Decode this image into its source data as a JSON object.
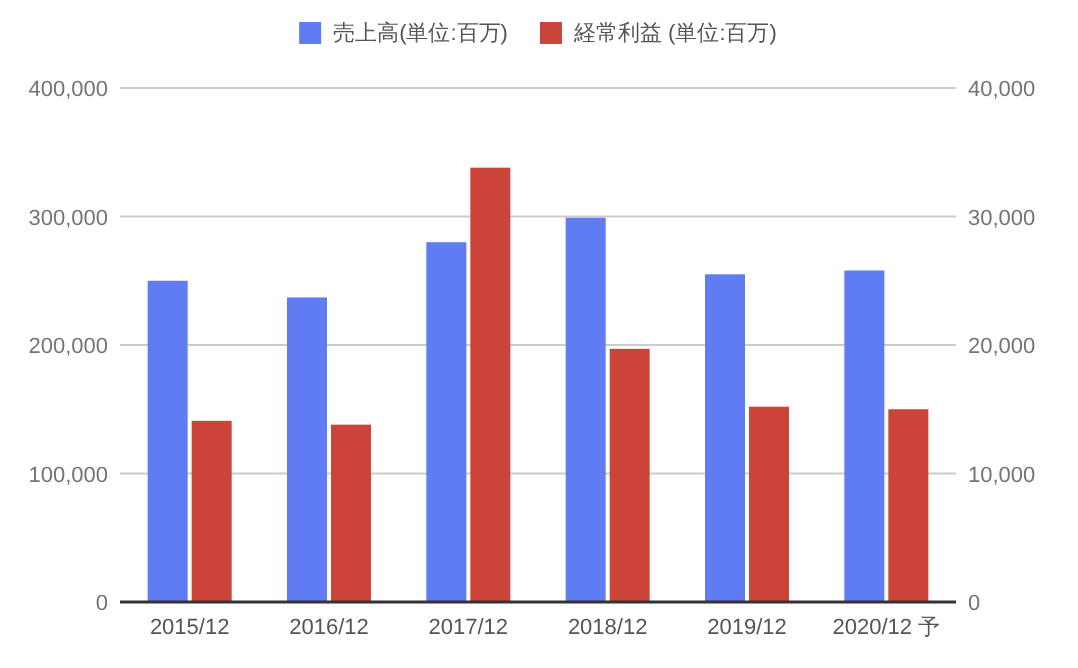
{
  "chart_data": {
    "type": "bar",
    "categories": [
      "2015/12",
      "2016/12",
      "2017/12",
      "2018/12",
      "2019/12",
      "2020/12 予"
    ],
    "series": [
      {
        "name": "売上高(単位:百万)",
        "color": "#5f7cf2",
        "values": [
          250000,
          237000,
          280000,
          299000,
          255000,
          258000
        ]
      },
      {
        "name": "経常利益 (単位:百万)",
        "color": "#cc4339",
        "axis": "y2",
        "values": [
          14100,
          13800,
          33800,
          19700,
          15200,
          15000
        ]
      }
    ],
    "ylim": [
      0,
      400000
    ],
    "yticks": [
      0,
      {
        "value": 100000,
        "label": "100,000"
      },
      {
        "value": 200000,
        "label": "200,000"
      },
      {
        "value": 300000,
        "label": "300,000"
      },
      {
        "value": 400000,
        "label": "400,000"
      }
    ],
    "y2lim": [
      0,
      40000
    ],
    "y2ticks": [
      0,
      {
        "value": 10000,
        "label": "10,000"
      },
      {
        "value": 20000,
        "label": "20,000"
      },
      {
        "value": 30000,
        "label": "30,000"
      },
      {
        "value": 40000,
        "label": "40,000"
      }
    ],
    "grid": "y",
    "legend": "top"
  }
}
